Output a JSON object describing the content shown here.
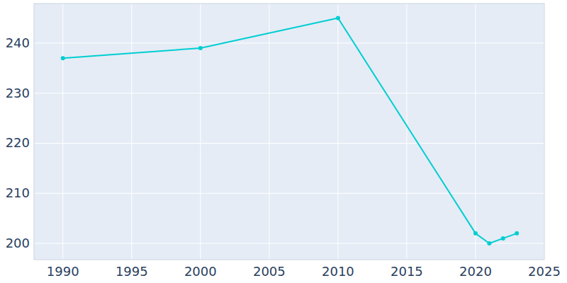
{
  "chart_data": {
    "type": "line",
    "x": [
      1990,
      2000,
      2010,
      2020,
      2021,
      2022,
      2023
    ],
    "values": [
      237,
      239,
      245,
      202,
      200,
      201,
      202
    ],
    "color": "#00ced1",
    "marker": "circle",
    "xlim": [
      1987.9,
      2025
    ],
    "xticks": [
      1990,
      1995,
      2000,
      2005,
      2010,
      2015,
      2020,
      2025
    ],
    "ylim": [
      196.75,
      247.9
    ],
    "yticks": [
      200,
      210,
      220,
      230,
      240
    ],
    "grid": true
  }
}
